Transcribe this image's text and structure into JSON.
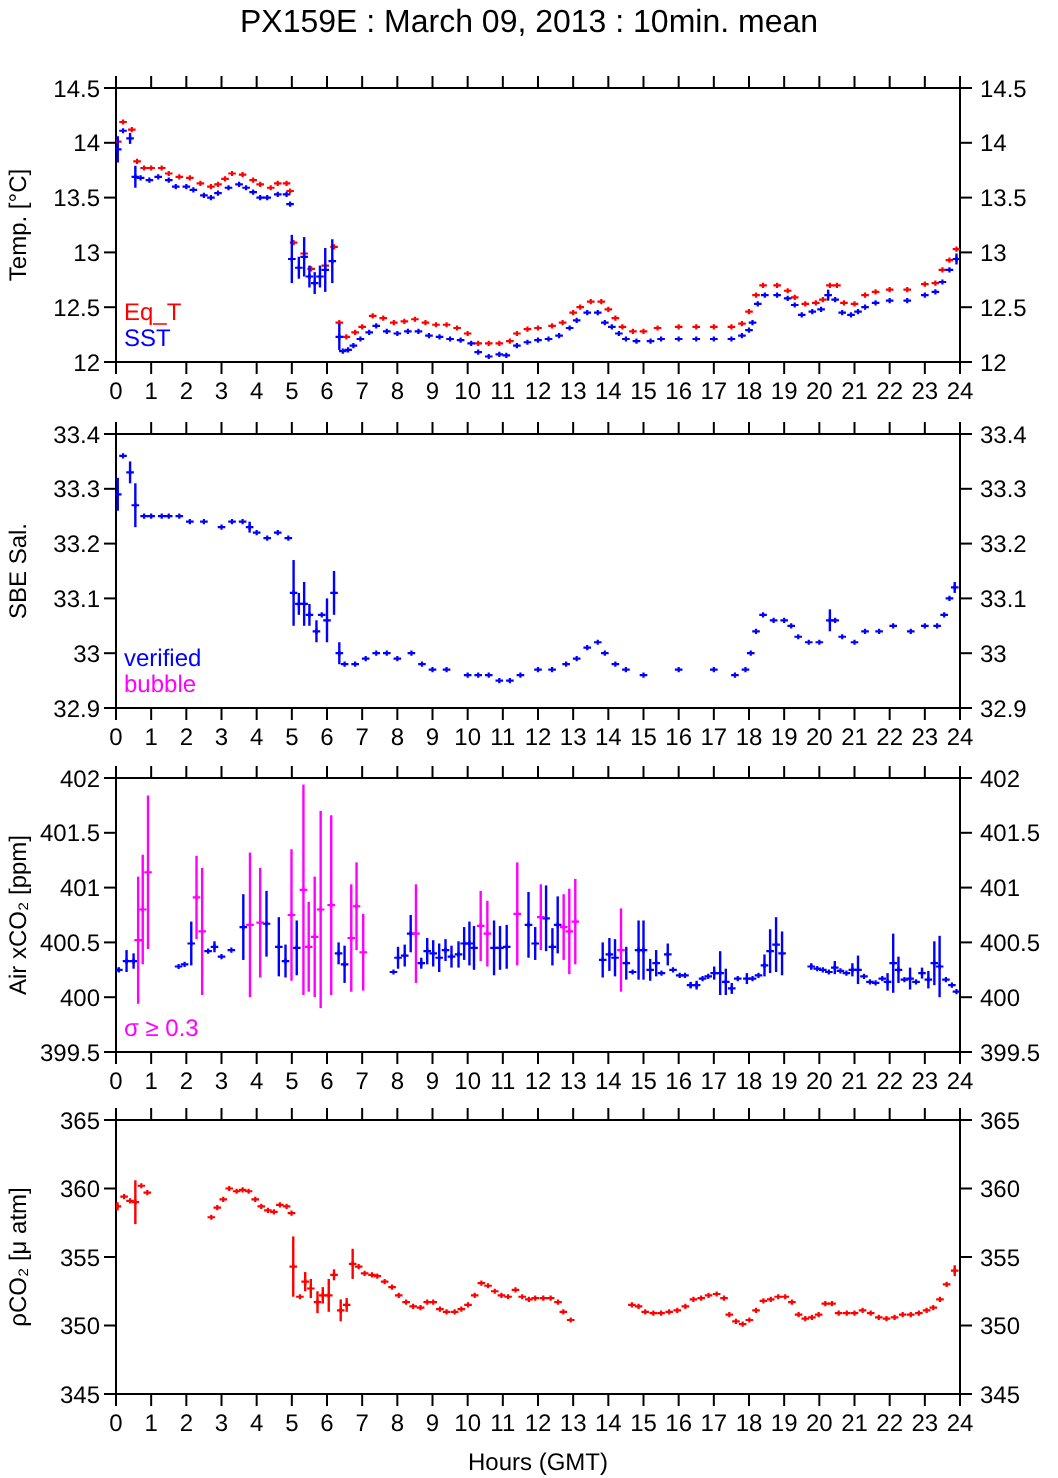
{
  "chart_data": [
    {
      "type": "scatter",
      "title": "PX159E : March 09, 2013 : 10min. mean",
      "ylabel": "Temp. [°C]",
      "xlim": [
        0,
        24
      ],
      "xticks": [
        0,
        1,
        2,
        3,
        4,
        5,
        6,
        7,
        8,
        9,
        10,
        11,
        12,
        13,
        14,
        15,
        16,
        17,
        18,
        19,
        20,
        21,
        22,
        23,
        24
      ],
      "ylim": [
        12,
        14.5
      ],
      "yticks": [
        12,
        12.5,
        13,
        13.5,
        14,
        14.5
      ],
      "y2lim": [
        12,
        14.5
      ],
      "y2ticks": [
        12,
        12.5,
        13,
        13.5,
        14,
        14.5
      ],
      "marker": "cross",
      "legend": "bottom left",
      "series": [
        {
          "name": "Eq_T",
          "color": "#ff0000",
          "x": [
            0.05,
            0.2,
            0.45,
            0.6,
            0.8,
            1.0,
            1.3,
            1.5,
            1.8,
            2.1,
            2.4,
            2.7,
            2.9,
            3.1,
            3.3,
            3.6,
            3.9,
            4.1,
            4.4,
            4.6,
            4.85,
            4.95,
            5.05,
            5.35,
            5.55,
            5.95,
            6.2,
            6.35,
            6.55,
            6.8,
            7.0,
            7.3,
            7.6,
            7.9,
            8.2,
            8.5,
            8.8,
            9.1,
            9.4,
            9.7,
            10.0,
            10.3,
            10.6,
            10.9,
            11.2,
            11.4,
            11.7,
            12.0,
            12.4,
            12.7,
            13.0,
            13.2,
            13.5,
            13.8,
            14.0,
            14.2,
            14.4,
            14.7,
            15.0,
            15.4,
            16.0,
            16.5,
            17.0,
            17.5,
            17.8,
            18.0,
            18.2,
            18.4,
            18.8,
            19.1,
            19.3,
            19.6,
            19.9,
            20.1,
            20.3,
            20.5,
            20.7,
            21.0,
            21.3,
            21.6,
            22.0,
            22.5,
            23.0,
            23.3,
            23.5,
            23.7,
            23.9
          ],
          "values": [
            14.01,
            14.19,
            14.12,
            13.83,
            13.77,
            13.77,
            13.77,
            13.72,
            13.69,
            13.68,
            13.63,
            13.6,
            13.62,
            13.67,
            13.72,
            13.71,
            13.66,
            13.62,
            13.59,
            13.63,
            13.63,
            13.56,
            13.09,
            12.99,
            12.85,
            12.88,
            13.05,
            12.36,
            12.23,
            12.27,
            12.32,
            12.42,
            12.4,
            12.36,
            12.37,
            12.39,
            12.36,
            12.34,
            12.34,
            12.31,
            12.26,
            12.17,
            12.17,
            12.17,
            12.19,
            12.26,
            12.3,
            12.31,
            12.33,
            12.36,
            12.45,
            12.5,
            12.55,
            12.55,
            12.48,
            12.4,
            12.32,
            12.28,
            12.28,
            12.31,
            12.32,
            12.32,
            12.32,
            12.32,
            12.35,
            12.46,
            12.61,
            12.7,
            12.7,
            12.65,
            12.59,
            12.53,
            12.54,
            12.57,
            12.7,
            12.7,
            12.54,
            12.53,
            12.61,
            12.64,
            12.66,
            12.66,
            12.71,
            12.72,
            12.84,
            12.93,
            13.03
          ]
        },
        {
          "name": "SST",
          "color": "#0000ff",
          "x": [
            0.05,
            0.2,
            0.4,
            0.55,
            0.7,
            0.95,
            1.2,
            1.5,
            1.7,
            2.0,
            2.2,
            2.5,
            2.7,
            2.9,
            3.2,
            3.5,
            3.7,
            3.9,
            4.1,
            4.3,
            4.6,
            4.85,
            4.95,
            5.0,
            5.2,
            5.35,
            5.5,
            5.65,
            5.8,
            5.95,
            6.15,
            6.35,
            6.45,
            6.6,
            6.75,
            6.95,
            7.2,
            7.4,
            7.7,
            8.0,
            8.3,
            8.6,
            8.9,
            9.2,
            9.5,
            9.8,
            10.1,
            10.3,
            10.6,
            10.9,
            11.1,
            11.4,
            11.7,
            12.0,
            12.3,
            12.6,
            12.9,
            13.1,
            13.4,
            13.7,
            13.9,
            14.1,
            14.3,
            14.5,
            14.8,
            15.2,
            15.5,
            16.0,
            16.5,
            17.0,
            17.5,
            17.8,
            18.0,
            18.1,
            18.25,
            18.45,
            18.8,
            19.1,
            19.3,
            19.5,
            19.8,
            20.05,
            20.25,
            20.45,
            20.65,
            20.9,
            21.1,
            21.3,
            21.6,
            22.0,
            22.5,
            23.0,
            23.3,
            23.5,
            23.7,
            23.9
          ],
          "values": [
            13.94,
            14.11,
            14.04,
            13.69,
            13.68,
            13.66,
            13.69,
            13.66,
            13.6,
            13.6,
            13.57,
            13.52,
            13.5,
            13.54,
            13.59,
            13.62,
            13.59,
            13.55,
            13.5,
            13.5,
            13.53,
            13.53,
            13.44,
            12.94,
            12.86,
            12.96,
            12.78,
            12.72,
            12.78,
            12.84,
            12.92,
            12.23,
            12.1,
            12.11,
            12.15,
            12.21,
            12.27,
            12.33,
            12.28,
            12.26,
            12.28,
            12.28,
            12.24,
            12.23,
            12.21,
            12.2,
            12.17,
            12.09,
            12.05,
            12.07,
            12.06,
            12.15,
            12.18,
            12.2,
            12.21,
            12.24,
            12.31,
            12.38,
            12.45,
            12.45,
            12.36,
            12.32,
            12.26,
            12.21,
            12.19,
            12.19,
            12.21,
            12.21,
            12.21,
            12.21,
            12.21,
            12.24,
            12.29,
            12.36,
            12.53,
            12.61,
            12.61,
            12.58,
            12.52,
            12.43,
            12.46,
            12.48,
            12.61,
            12.57,
            12.45,
            12.43,
            12.46,
            12.5,
            12.54,
            12.56,
            12.56,
            12.61,
            12.64,
            12.73,
            12.84,
            12.94
          ],
          "errors": [
            0.12,
            null,
            0.05,
            0.1,
            null,
            null,
            null,
            null,
            null,
            null,
            null,
            null,
            null,
            null,
            null,
            null,
            null,
            null,
            null,
            null,
            null,
            null,
            null,
            0.22,
            0.1,
            0.18,
            0.1,
            0.1,
            0.1,
            0.2,
            0.2,
            0.12,
            null,
            null,
            null,
            null,
            null,
            null,
            null,
            null,
            null,
            null,
            null,
            null,
            null,
            null,
            null,
            null,
            null,
            null,
            null,
            null,
            null,
            null,
            null,
            null,
            null,
            null,
            null,
            null,
            null,
            null,
            null,
            null,
            null,
            null,
            null,
            null,
            null,
            null,
            null,
            null,
            null,
            null,
            null,
            null,
            null,
            null,
            null,
            null,
            null,
            null,
            0.05,
            null,
            null,
            null,
            null,
            null,
            null,
            null,
            null,
            null,
            null,
            null,
            null,
            0.05
          ]
        }
      ]
    },
    {
      "type": "scatter",
      "ylabel": "SBE Sal.",
      "xlim": [
        0,
        24
      ],
      "xticks": [
        0,
        1,
        2,
        3,
        4,
        5,
        6,
        7,
        8,
        9,
        10,
        11,
        12,
        13,
        14,
        15,
        16,
        17,
        18,
        19,
        20,
        21,
        22,
        23,
        24
      ],
      "ylim": [
        32.9,
        33.4
      ],
      "yticks": [
        32.9,
        33,
        33.1,
        33.2,
        33.3,
        33.4
      ],
      "y2lim": [
        32.9,
        33.4
      ],
      "y2ticks": [
        32.9,
        33,
        33.1,
        33.2,
        33.3,
        33.4
      ],
      "marker": "cross",
      "legend": "bottom left",
      "series": [
        {
          "name": "verified",
          "color": "#0000ff",
          "x": [
            0.05,
            0.2,
            0.4,
            0.55,
            0.8,
            1.0,
            1.3,
            1.5,
            1.8,
            2.1,
            2.5,
            3.0,
            3.3,
            3.6,
            3.8,
            4.0,
            4.3,
            4.6,
            4.9,
            5.05,
            5.2,
            5.35,
            5.5,
            5.7,
            5.85,
            6.0,
            6.2,
            6.35,
            6.5,
            6.8,
            7.1,
            7.4,
            7.7,
            8.0,
            8.4,
            8.7,
            9.0,
            9.4,
            10.0,
            10.3,
            10.6,
            10.9,
            11.2,
            11.5,
            12.0,
            12.4,
            12.8,
            13.1,
            13.4,
            13.7,
            13.9,
            14.2,
            14.5,
            15.0,
            16.0,
            17.0,
            17.6,
            17.9,
            18.05,
            18.2,
            18.4,
            18.7,
            19.0,
            19.2,
            19.4,
            19.7,
            20.0,
            20.3,
            20.45,
            20.65,
            21.0,
            21.3,
            21.7,
            22.1,
            22.6,
            23.0,
            23.35,
            23.55,
            23.7,
            23.85
          ],
          "values": [
            33.29,
            33.36,
            33.33,
            33.27,
            33.25,
            33.25,
            33.25,
            33.25,
            33.25,
            33.24,
            33.24,
            33.23,
            33.24,
            33.24,
            33.23,
            33.22,
            33.21,
            33.22,
            33.21,
            33.11,
            33.09,
            33.09,
            33.07,
            33.04,
            33.07,
            33.06,
            33.11,
            33.0,
            32.98,
            32.98,
            32.99,
            33.0,
            33.0,
            32.99,
            33.0,
            32.98,
            32.97,
            32.97,
            32.96,
            32.96,
            32.96,
            32.95,
            32.95,
            32.96,
            32.97,
            32.97,
            32.98,
            32.99,
            33.01,
            33.02,
            33.0,
            32.98,
            32.97,
            32.96,
            32.97,
            32.97,
            32.96,
            32.97,
            33.0,
            33.04,
            33.07,
            33.06,
            33.06,
            33.05,
            33.03,
            33.02,
            33.02,
            33.06,
            33.06,
            33.03,
            33.02,
            33.04,
            33.04,
            33.05,
            33.04,
            33.05,
            33.05,
            33.07,
            33.1,
            33.12
          ],
          "errors": [
            0.03,
            null,
            0.02,
            0.04,
            null,
            null,
            null,
            null,
            null,
            null,
            null,
            null,
            null,
            null,
            0.01,
            null,
            null,
            null,
            null,
            0.06,
            0.02,
            0.04,
            0.02,
            0.02,
            null,
            0.04,
            0.04,
            0.02,
            null,
            null,
            null,
            null,
            null,
            null,
            null,
            null,
            null,
            null,
            null,
            null,
            null,
            null,
            null,
            null,
            null,
            null,
            null,
            null,
            null,
            null,
            null,
            null,
            null,
            null,
            null,
            null,
            null,
            null,
            null,
            null,
            null,
            null,
            null,
            null,
            null,
            null,
            null,
            0.02,
            null,
            null,
            null,
            null,
            null,
            null,
            null,
            null,
            null,
            null,
            null,
            0.01
          ]
        },
        {
          "name": "bubble",
          "color": "#ff00ff"
        }
      ]
    },
    {
      "type": "scatter",
      "ylabel": "Air xCO₂ [ppm]",
      "xlim": [
        0,
        24
      ],
      "xticks": [
        0,
        1,
        2,
        3,
        4,
        5,
        6,
        7,
        8,
        9,
        10,
        11,
        12,
        13,
        14,
        15,
        16,
        17,
        18,
        19,
        20,
        21,
        22,
        23,
        24
      ],
      "ylim": [
        399.5,
        402
      ],
      "yticks": [
        399.5,
        400,
        400.5,
        401,
        401.5,
        402
      ],
      "y2lim": [
        399.5,
        402
      ],
      "y2ticks": [
        399.5,
        400,
        400.5,
        401,
        401.5,
        402
      ],
      "marker": "cross",
      "legend": "bottom left",
      "series": [
        {
          "color": "#0000ff",
          "x": [
            0.08,
            0.3,
            0.5,
            1.78,
            1.95,
            2.14,
            2.62,
            2.8,
            3.0,
            3.28,
            3.62,
            4.28,
            4.63,
            4.82,
            5.14,
            6.33,
            6.5,
            7.89,
            8.02,
            8.21,
            8.38,
            8.68,
            8.85,
            9.02,
            9.19,
            9.37,
            9.54,
            9.74,
            9.9,
            10.05,
            10.18,
            10.75,
            10.92,
            11.11,
            11.73,
            11.92,
            12.23,
            12.41,
            12.56,
            13.84,
            14.03,
            14.19,
            14.51,
            14.69,
            14.86,
            15.0,
            15.19,
            15.36,
            15.51,
            15.69,
            15.84,
            16.03,
            16.18,
            16.34,
            16.51,
            16.68,
            16.84,
            17.01,
            17.18,
            17.34,
            17.51,
            17.68,
            17.94,
            18.1,
            18.27,
            18.44,
            18.6,
            18.77,
            18.94,
            19.77,
            19.94,
            20.1,
            20.27,
            20.44,
            20.6,
            20.77,
            20.94,
            21.1,
            21.27,
            21.44,
            21.6,
            21.79,
            21.94,
            22.1,
            22.25,
            22.42,
            22.58,
            22.75,
            22.92,
            23.1,
            23.27,
            23.42,
            23.6,
            23.77,
            23.9
          ],
          "values": [
            400.25,
            400.33,
            400.33,
            400.28,
            400.3,
            400.49,
            400.42,
            400.46,
            400.37,
            400.43,
            400.64,
            400.67,
            400.46,
            400.33,
            400.45,
            400.4,
            400.3,
            400.23,
            400.36,
            400.38,
            400.58,
            400.31,
            400.42,
            400.4,
            400.36,
            400.43,
            400.37,
            400.39,
            400.49,
            400.49,
            400.45,
            400.45,
            400.45,
            400.46,
            400.66,
            400.49,
            400.72,
            400.46,
            400.66,
            400.34,
            400.39,
            400.36,
            400.31,
            400.23,
            400.43,
            400.43,
            400.25,
            400.31,
            400.22,
            400.39,
            400.25,
            400.2,
            400.2,
            400.11,
            400.11,
            400.17,
            400.19,
            400.22,
            400.22,
            400.14,
            400.08,
            400.17,
            400.17,
            400.17,
            400.2,
            400.29,
            400.42,
            400.48,
            400.4,
            400.28,
            400.26,
            400.25,
            400.23,
            400.27,
            400.24,
            400.22,
            400.25,
            400.25,
            400.19,
            400.14,
            400.13,
            400.17,
            400.14,
            400.31,
            400.25,
            400.16,
            400.17,
            400.14,
            400.22,
            400.16,
            400.31,
            400.28,
            400.16,
            400.11,
            400.05
          ],
          "errors": [
            0.02,
            0.1,
            0.07,
            null,
            null,
            0.2,
            null,
            0.05,
            null,
            null,
            0.3,
            0.3,
            0.27,
            0.15,
            0.25,
            0.1,
            0.17,
            null,
            0.1,
            0.1,
            0.17,
            0.05,
            0.12,
            0.12,
            0.13,
            0.1,
            0.1,
            0.12,
            0.15,
            0.2,
            0.2,
            0.25,
            0.2,
            0.2,
            0.3,
            0.15,
            0.3,
            0.17,
            0.26,
            0.16,
            0.15,
            0.17,
            0.15,
            null,
            0.27,
            0.27,
            0.1,
            0.12,
            null,
            0.1,
            null,
            null,
            null,
            0.03,
            0.04,
            null,
            null,
            0.06,
            0.2,
            0.12,
            0.05,
            null,
            0.05,
            null,
            null,
            0.1,
            0.2,
            0.25,
            0.2,
            0.03,
            null,
            null,
            null,
            0.06,
            null,
            null,
            0.06,
            0.13,
            null,
            null,
            null,
            null,
            0.08,
            0.27,
            0.12,
            null,
            0.1,
            null,
            0.05,
            0.08,
            0.2,
            0.28,
            null,
            null,
            null
          ]
        },
        {
          "name": "σ ≥ 0.3",
          "color": "#ff00ff",
          "x": [
            0.63,
            0.76,
            0.91,
            2.29,
            2.45,
            3.81,
            4.1,
            4.99,
            5.33,
            5.48,
            5.65,
            5.82,
            6.12,
            6.69,
            6.84,
            7.03,
            8.53,
            10.37,
            10.56,
            11.41,
            12.08,
            12.73,
            12.89,
            13.06,
            14.36
          ],
          "values": [
            400.52,
            400.8,
            401.14,
            400.91,
            400.6,
            400.66,
            400.68,
            400.75,
            400.98,
            400.46,
            400.55,
            400.8,
            400.84,
            400.54,
            400.83,
            400.41,
            400.58,
            400.65,
            400.58,
            400.76,
            400.73,
            400.64,
            400.6,
            400.69,
            400.43
          ],
          "errors": [
            0.58,
            0.5,
            0.7,
            0.38,
            0.58,
            0.66,
            0.5,
            0.6,
            0.96,
            0.41,
            0.55,
            0.9,
            0.82,
            0.49,
            0.4,
            0.35,
            0.45,
            0.32,
            0.3,
            0.47,
            0.3,
            0.3,
            0.39,
            0.39,
            0.38
          ]
        }
      ]
    },
    {
      "type": "scatter",
      "ylabel": "ρCO₂ [μ atm]",
      "xlabel": "Hours (GMT)",
      "xlim": [
        0,
        24
      ],
      "xticks": [
        0,
        1,
        2,
        3,
        4,
        5,
        6,
        7,
        8,
        9,
        10,
        11,
        12,
        13,
        14,
        15,
        16,
        17,
        18,
        19,
        20,
        21,
        22,
        23,
        24
      ],
      "ylim": [
        345,
        365
      ],
      "yticks": [
        345,
        350,
        355,
        360,
        365
      ],
      "y2lim": [
        345,
        365
      ],
      "y2ticks": [
        345,
        350,
        355,
        360,
        365
      ],
      "marker": "cross",
      "series": [
        {
          "color": "#ff0000",
          "x": [
            0.04,
            0.23,
            0.4,
            0.55,
            0.72,
            0.89,
            2.71,
            2.88,
            3.05,
            3.22,
            3.43,
            3.6,
            3.77,
            3.96,
            4.13,
            4.32,
            4.49,
            4.66,
            4.85,
            4.99,
            5.04,
            5.23,
            5.38,
            5.54,
            5.73,
            5.88,
            6.05,
            6.2,
            6.39,
            6.56,
            6.73,
            6.9,
            7.07,
            7.28,
            7.43,
            7.64,
            7.85,
            8.04,
            8.25,
            8.45,
            8.66,
            8.85,
            9.02,
            9.21,
            9.4,
            9.63,
            9.82,
            10.01,
            10.2,
            10.39,
            10.58,
            10.77,
            10.96,
            11.15,
            11.36,
            11.55,
            11.74,
            11.92,
            12.15,
            12.36,
            12.57,
            12.72,
            12.93,
            14.67,
            14.86,
            15.05,
            15.28,
            15.5,
            15.73,
            15.96,
            16.19,
            16.42,
            16.64,
            16.85,
            17.08,
            17.29,
            17.44,
            17.63,
            17.82,
            18.01,
            18.2,
            18.41,
            18.62,
            18.83,
            19.03,
            19.22,
            19.41,
            19.6,
            19.79,
            19.98,
            20.17,
            20.36,
            20.55,
            20.78,
            21.0,
            21.23,
            21.46,
            21.69,
            21.91,
            22.14,
            22.37,
            22.6,
            22.83,
            23.05,
            23.24,
            23.43,
            23.62,
            23.85
          ],
          "values": [
            358.7,
            359.4,
            359.1,
            359.0,
            360.2,
            359.7,
            357.9,
            358.6,
            359.2,
            360.0,
            359.8,
            359.9,
            359.8,
            359.2,
            358.7,
            358.4,
            358.3,
            358.8,
            358.7,
            358.2,
            354.3,
            352.1,
            353.2,
            352.7,
            351.7,
            352.2,
            352.2,
            353.7,
            351.1,
            351.5,
            354.5,
            354.3,
            353.8,
            353.7,
            353.6,
            353.2,
            352.8,
            352.2,
            351.7,
            351.4,
            351.3,
            351.7,
            351.7,
            351.2,
            351.0,
            351.0,
            351.2,
            351.5,
            352.2,
            353.1,
            352.9,
            352.5,
            352.2,
            352.1,
            352.6,
            352.1,
            351.9,
            352.0,
            352.0,
            352.0,
            351.7,
            351.0,
            350.4,
            351.5,
            351.4,
            351.0,
            350.9,
            350.9,
            351.0,
            351.1,
            351.4,
            351.9,
            352.0,
            352.2,
            352.3,
            352.0,
            350.8,
            350.3,
            350.1,
            350.4,
            351.1,
            351.8,
            351.9,
            352.1,
            352.1,
            351.7,
            350.8,
            350.5,
            350.6,
            350.8,
            351.6,
            351.6,
            350.9,
            350.9,
            350.9,
            351.1,
            350.9,
            350.6,
            350.5,
            350.6,
            350.8,
            350.8,
            350.9,
            351.1,
            351.3,
            351.9,
            353.0,
            354.0
          ],
          "errors": [
            0.3,
            null,
            null,
            1.6,
            null,
            null,
            null,
            null,
            null,
            null,
            null,
            null,
            null,
            null,
            null,
            null,
            null,
            null,
            null,
            null,
            2.2,
            null,
            0.7,
            0.7,
            0.8,
            0.6,
            1.2,
            0.4,
            0.8,
            0.5,
            1.1,
            null,
            null,
            null,
            null,
            null,
            null,
            null,
            null,
            null,
            null,
            null,
            null,
            null,
            null,
            null,
            null,
            null,
            null,
            null,
            null,
            null,
            null,
            null,
            null,
            null,
            null,
            null,
            null,
            null,
            null,
            null,
            null,
            null,
            null,
            null,
            null,
            null,
            null,
            null,
            null,
            null,
            null,
            null,
            null,
            null,
            null,
            null,
            null,
            null,
            null,
            null,
            null,
            null,
            null,
            null,
            null,
            null,
            null,
            null,
            null,
            null,
            null,
            null,
            null,
            null,
            null,
            null,
            null,
            null,
            null,
            null,
            null,
            null,
            null,
            null,
            null,
            0.4
          ]
        }
      ]
    }
  ]
}
